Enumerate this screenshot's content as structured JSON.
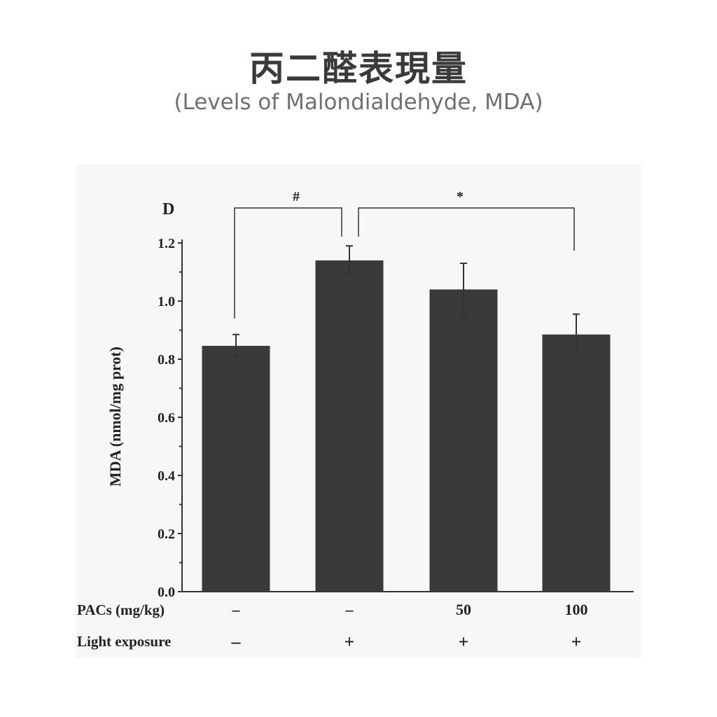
{
  "header": {
    "title": "丙二醛表現量",
    "subtitle": "(Levels of Malondialdehyde, MDA)"
  },
  "chart_data": {
    "type": "bar",
    "panel_label": "D",
    "ylabel": "MDA (nmol/mg prot)",
    "ylim": [
      0,
      1.2
    ],
    "yticks": [
      "0.0",
      "0.2",
      "0.4",
      "0.6",
      "0.8",
      "1.0",
      "1.2"
    ],
    "grid": false,
    "bar_color": "#3a3a3a",
    "groups": [
      {
        "pacs": "-",
        "light": "-",
        "value": 0.846,
        "err_low": 0.81,
        "err_high": 0.885
      },
      {
        "pacs": "-",
        "light": "+",
        "value": 1.14,
        "err_low": 1.09,
        "err_high": 1.19
      },
      {
        "pacs": "50",
        "light": "+",
        "value": 1.04,
        "err_low": 0.945,
        "err_high": 1.13
      },
      {
        "pacs": "100",
        "light": "+",
        "value": 0.885,
        "err_low": 0.82,
        "err_high": 0.955
      }
    ],
    "row_labels": {
      "pacs": "PACs (mg/kg)",
      "light": "Light exposure"
    },
    "annotations": [
      {
        "text": "#",
        "between": [
          1,
          2
        ]
      },
      {
        "text": "*",
        "between": [
          2,
          4
        ]
      }
    ]
  }
}
